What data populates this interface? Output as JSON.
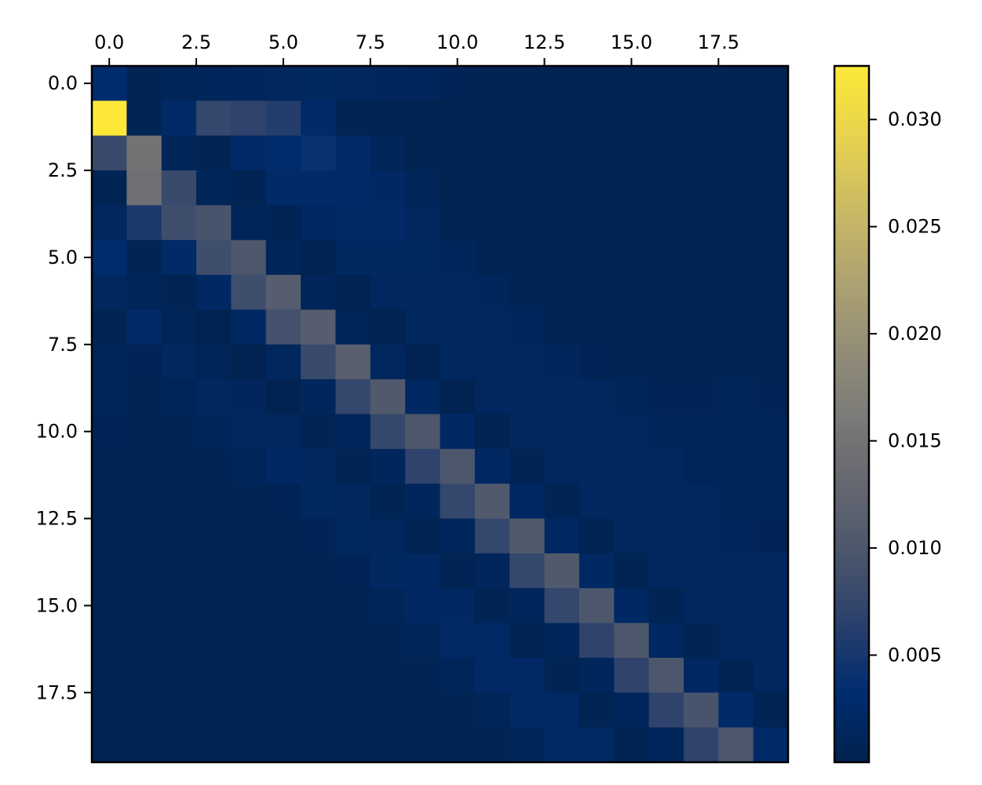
{
  "chart_data": {
    "type": "heatmap",
    "title": "",
    "xlabel": "",
    "ylabel": "",
    "colormap": "cividis",
    "x_axis_position": "top",
    "x_range": [
      -0.5,
      19.5
    ],
    "y_range": [
      -0.5,
      19.5
    ],
    "y_inverted": true,
    "x_ticks": [
      0.0,
      2.5,
      5.0,
      7.5,
      10.0,
      12.5,
      15.0,
      17.5
    ],
    "x_tick_labels": [
      "0.0",
      "2.5",
      "5.0",
      "7.5",
      "10.0",
      "12.5",
      "15.0",
      "17.5"
    ],
    "y_ticks": [
      0.0,
      2.5,
      5.0,
      7.5,
      10.0,
      12.5,
      15.0,
      17.5
    ],
    "y_tick_labels": [
      "0.0",
      "2.5",
      "5.0",
      "7.5",
      "10.0",
      "12.5",
      "15.0",
      "17.5"
    ],
    "colorbar": {
      "min": 0.0,
      "max": 0.0325,
      "ticks": [
        0.005,
        0.01,
        0.015,
        0.02,
        0.025,
        0.03
      ],
      "tick_labels": [
        "0.005",
        "0.010",
        "0.015",
        "0.020",
        "0.025",
        "0.030"
      ]
    },
    "grid": false,
    "matrix": [
      [
        0.003,
        0.0005,
        0.001,
        0.0012,
        0.0014,
        0.0016,
        0.0018,
        0.0016,
        0.0014,
        0.0012,
        0.0008,
        0.0006,
        0.0004,
        0.0003,
        0.0003,
        0.0003,
        0.0003,
        0.0003,
        0.0003,
        0.0003
      ],
      [
        0.0325,
        0.0005,
        0.0025,
        0.0075,
        0.007,
        0.006,
        0.0025,
        0.0005,
        0.0003,
        0.0003,
        0.0003,
        0.0003,
        0.0003,
        0.0003,
        0.0003,
        0.0003,
        0.0003,
        0.0003,
        0.0003,
        0.0003
      ],
      [
        0.008,
        0.015,
        0.001,
        0.0005,
        0.0025,
        0.003,
        0.004,
        0.0025,
        0.001,
        0.0003,
        0.0003,
        0.0003,
        0.0003,
        0.0003,
        0.0003,
        0.0003,
        0.0003,
        0.0003,
        0.0003,
        0.0003
      ],
      [
        0.0005,
        0.0145,
        0.008,
        0.001,
        0.0005,
        0.0025,
        0.0025,
        0.0025,
        0.002,
        0.001,
        0.0003,
        0.0003,
        0.0003,
        0.0003,
        0.0003,
        0.0003,
        0.0003,
        0.0003,
        0.0003,
        0.0003
      ],
      [
        0.0015,
        0.0055,
        0.0085,
        0.0095,
        0.001,
        0.0005,
        0.002,
        0.0022,
        0.0022,
        0.0015,
        0.0005,
        0.0003,
        0.0003,
        0.0003,
        0.0003,
        0.0003,
        0.0003,
        0.0003,
        0.0003,
        0.0003
      ],
      [
        0.003,
        0.0005,
        0.0025,
        0.0085,
        0.01,
        0.001,
        0.0003,
        0.0018,
        0.0018,
        0.0018,
        0.0012,
        0.0005,
        0.0004,
        0.0003,
        0.0003,
        0.0003,
        0.0003,
        0.0003,
        0.0003,
        0.0003
      ],
      [
        0.0015,
        0.001,
        0.0005,
        0.002,
        0.0085,
        0.011,
        0.001,
        0.0003,
        0.0015,
        0.0015,
        0.0015,
        0.0012,
        0.0006,
        0.0004,
        0.0003,
        0.0003,
        0.0003,
        0.0003,
        0.0003,
        0.0003
      ],
      [
        0.0005,
        0.0025,
        0.001,
        0.0003,
        0.002,
        0.009,
        0.011,
        0.001,
        0.0003,
        0.0015,
        0.0015,
        0.0017,
        0.0012,
        0.0006,
        0.0004,
        0.0004,
        0.0004,
        0.0004,
        0.0004,
        0.0004
      ],
      [
        0.001,
        0.0008,
        0.0015,
        0.001,
        0.0004,
        0.0015,
        0.008,
        0.0115,
        0.0015,
        0.0004,
        0.0015,
        0.0015,
        0.0015,
        0.0013,
        0.0007,
        0.0006,
        0.0006,
        0.0006,
        0.0006,
        0.0006
      ],
      [
        0.001,
        0.0006,
        0.001,
        0.0015,
        0.0012,
        0.0004,
        0.0012,
        0.0075,
        0.0105,
        0.002,
        0.0004,
        0.0015,
        0.0015,
        0.0015,
        0.0015,
        0.001,
        0.0008,
        0.0008,
        0.001,
        0.0008
      ],
      [
        0.0008,
        0.0006,
        0.0006,
        0.001,
        0.0015,
        0.0015,
        0.0005,
        0.0012,
        0.0075,
        0.01,
        0.002,
        0.0004,
        0.0015,
        0.0015,
        0.0015,
        0.0015,
        0.001,
        0.001,
        0.001,
        0.001
      ],
      [
        0.0005,
        0.0005,
        0.0005,
        0.0006,
        0.001,
        0.002,
        0.0015,
        0.0005,
        0.0012,
        0.007,
        0.01,
        0.002,
        0.0005,
        0.0015,
        0.0015,
        0.0015,
        0.0015,
        0.001,
        0.001,
        0.001
      ],
      [
        0.0005,
        0.0005,
        0.0005,
        0.0005,
        0.0006,
        0.0008,
        0.0018,
        0.0015,
        0.0005,
        0.0012,
        0.0075,
        0.0105,
        0.002,
        0.0005,
        0.0015,
        0.0015,
        0.0015,
        0.0015,
        0.001,
        0.001
      ],
      [
        0.0004,
        0.0004,
        0.0004,
        0.0004,
        0.0005,
        0.0006,
        0.0008,
        0.0018,
        0.0015,
        0.0005,
        0.0012,
        0.0075,
        0.0105,
        0.002,
        0.0005,
        0.0015,
        0.0015,
        0.0015,
        0.0012,
        0.0008
      ],
      [
        0.0004,
        0.0004,
        0.0004,
        0.0004,
        0.0004,
        0.0005,
        0.0006,
        0.0008,
        0.0018,
        0.002,
        0.0005,
        0.0012,
        0.0075,
        0.0105,
        0.002,
        0.0005,
        0.0015,
        0.0015,
        0.0015,
        0.0015
      ],
      [
        0.0004,
        0.0004,
        0.0004,
        0.0004,
        0.0004,
        0.0004,
        0.0005,
        0.0006,
        0.001,
        0.002,
        0.002,
        0.0005,
        0.0012,
        0.0075,
        0.01,
        0.002,
        0.0005,
        0.0015,
        0.0015,
        0.0015
      ],
      [
        0.0004,
        0.0004,
        0.0004,
        0.0004,
        0.0004,
        0.0004,
        0.0004,
        0.0005,
        0.0006,
        0.001,
        0.0022,
        0.0022,
        0.0005,
        0.0012,
        0.007,
        0.01,
        0.002,
        0.0005,
        0.0015,
        0.0015
      ],
      [
        0.0004,
        0.0004,
        0.0004,
        0.0004,
        0.0004,
        0.0004,
        0.0004,
        0.0004,
        0.0005,
        0.0006,
        0.001,
        0.0022,
        0.0022,
        0.0005,
        0.0012,
        0.007,
        0.01,
        0.002,
        0.0005,
        0.0015
      ],
      [
        0.0004,
        0.0004,
        0.0004,
        0.0004,
        0.0004,
        0.0004,
        0.0004,
        0.0004,
        0.0004,
        0.0005,
        0.0006,
        0.001,
        0.0022,
        0.0022,
        0.0005,
        0.0012,
        0.007,
        0.0095,
        0.0025,
        0.0005
      ],
      [
        0.0004,
        0.0004,
        0.0004,
        0.0004,
        0.0004,
        0.0004,
        0.0004,
        0.0004,
        0.0004,
        0.0004,
        0.0005,
        0.0006,
        0.001,
        0.0022,
        0.0022,
        0.0005,
        0.0012,
        0.007,
        0.01,
        0.0025
      ]
    ]
  }
}
